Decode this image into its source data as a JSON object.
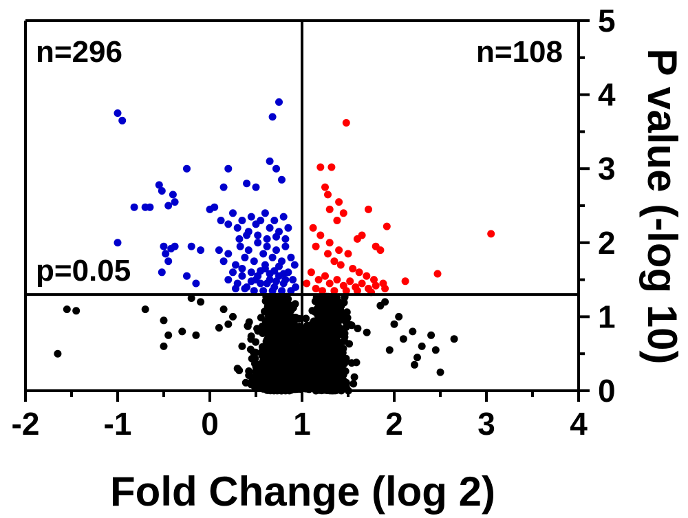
{
  "chart_data": {
    "type": "scatter",
    "title": "",
    "xlabel": "Fold Change (log 2)",
    "ylabel": "P value (-log 10)",
    "xlim": [
      -2,
      4
    ],
    "ylim": [
      0,
      5
    ],
    "x_ticks": [
      "-2",
      "-1",
      "0",
      "1",
      "2",
      "3",
      "4"
    ],
    "y_ticks": [
      "0",
      "1",
      "2",
      "3",
      "4",
      "5"
    ],
    "y_axis_side": "right",
    "grid": false,
    "threshold_x": 1,
    "threshold_y": 1.3,
    "annotations": {
      "left_count": "n=296",
      "right_count": "n=108",
      "p_threshold": "p=0.05"
    },
    "colors": {
      "down_regulated": "#0000cc",
      "up_regulated": "#ff0000",
      "not_significant": "#000000",
      "frame": "#000000"
    },
    "series": [
      {
        "group": "down",
        "color": "#0000cc",
        "points": [
          [
            -1.0,
            3.75
          ],
          [
            -0.95,
            3.65
          ],
          [
            0.75,
            3.9
          ],
          [
            0.68,
            3.7
          ],
          [
            -0.25,
            3.0
          ],
          [
            0.2,
            3.0
          ],
          [
            0.65,
            3.1
          ],
          [
            0.72,
            3.0
          ],
          [
            0.78,
            2.85
          ],
          [
            -0.55,
            2.78
          ],
          [
            -0.52,
            2.7
          ],
          [
            -0.4,
            2.65
          ],
          [
            0.15,
            2.75
          ],
          [
            0.4,
            2.8
          ],
          [
            0.5,
            2.75
          ],
          [
            -0.82,
            2.48
          ],
          [
            -0.7,
            2.48
          ],
          [
            -0.65,
            2.48
          ],
          [
            -0.45,
            2.5
          ],
          [
            -0.38,
            2.55
          ],
          [
            -1.0,
            2.0
          ],
          [
            -0.5,
            1.95
          ],
          [
            -0.45,
            1.75
          ],
          [
            -0.42,
            1.92
          ],
          [
            -0.48,
            1.85
          ],
          [
            -0.38,
            1.95
          ],
          [
            -0.2,
            1.95
          ],
          [
            -0.1,
            1.9
          ],
          [
            -0.52,
            1.6
          ],
          [
            -0.25,
            1.55
          ],
          [
            -0.15,
            1.45
          ],
          [
            0.0,
            2.45
          ],
          [
            0.05,
            2.48
          ],
          [
            0.12,
            2.3
          ],
          [
            0.2,
            2.25
          ],
          [
            0.25,
            2.4
          ],
          [
            0.3,
            2.2
          ],
          [
            0.35,
            2.3
          ],
          [
            0.4,
            2.1
          ],
          [
            0.45,
            2.35
          ],
          [
            0.5,
            2.25
          ],
          [
            0.55,
            2.3
          ],
          [
            0.6,
            2.4
          ],
          [
            0.65,
            2.2
          ],
          [
            0.7,
            2.3
          ],
          [
            0.75,
            2.15
          ],
          [
            0.8,
            2.35
          ],
          [
            0.85,
            2.2
          ],
          [
            0.1,
            1.9
          ],
          [
            0.15,
            1.75
          ],
          [
            0.2,
            1.85
          ],
          [
            0.28,
            1.7
          ],
          [
            0.33,
            1.95
          ],
          [
            0.38,
            1.8
          ],
          [
            0.42,
            1.9
          ],
          [
            0.48,
            1.75
          ],
          [
            0.52,
            2.0
          ],
          [
            0.58,
            1.85
          ],
          [
            0.62,
            1.95
          ],
          [
            0.68,
            1.8
          ],
          [
            0.72,
            1.9
          ],
          [
            0.78,
            1.75
          ],
          [
            0.82,
            1.95
          ],
          [
            0.88,
            1.8
          ],
          [
            0.92,
            1.7
          ],
          [
            0.2,
            1.5
          ],
          [
            0.25,
            1.6
          ],
          [
            0.3,
            1.45
          ],
          [
            0.35,
            1.55
          ],
          [
            0.4,
            1.4
          ],
          [
            0.45,
            1.6
          ],
          [
            0.5,
            1.5
          ],
          [
            0.55,
            1.45
          ],
          [
            0.6,
            1.65
          ],
          [
            0.65,
            1.5
          ],
          [
            0.7,
            1.4
          ],
          [
            0.75,
            1.55
          ],
          [
            0.8,
            1.45
          ],
          [
            0.85,
            1.6
          ],
          [
            0.9,
            1.5
          ],
          [
            0.93,
            1.4
          ],
          [
            0.88,
            1.35
          ],
          [
            0.78,
            1.35
          ],
          [
            0.68,
            1.35
          ],
          [
            0.58,
            1.35
          ],
          [
            0.48,
            1.35
          ],
          [
            0.38,
            1.38
          ],
          [
            0.28,
            1.38
          ],
          [
            0.6,
            1.7
          ],
          [
            0.7,
            1.62
          ],
          [
            0.75,
            1.68
          ],
          [
            0.8,
            1.58
          ],
          [
            0.65,
            1.58
          ],
          [
            0.55,
            1.62
          ],
          [
            0.72,
            1.48
          ],
          [
            0.82,
            1.5
          ],
          [
            0.62,
            1.45
          ],
          [
            0.52,
            1.55
          ],
          [
            0.45,
            1.48
          ],
          [
            0.35,
            1.65
          ],
          [
            0.32,
            2.05
          ],
          [
            0.42,
            2.15
          ],
          [
            0.52,
            2.1
          ],
          [
            0.62,
            2.05
          ],
          [
            0.72,
            2.08
          ],
          [
            0.82,
            2.05
          ]
        ]
      },
      {
        "group": "up",
        "color": "#ff0000",
        "points": [
          [
            1.48,
            3.62
          ],
          [
            1.2,
            3.02
          ],
          [
            1.32,
            3.02
          ],
          [
            1.25,
            2.75
          ],
          [
            1.28,
            2.65
          ],
          [
            1.4,
            2.55
          ],
          [
            1.72,
            2.45
          ],
          [
            1.45,
            2.4
          ],
          [
            1.3,
            2.45
          ],
          [
            3.05,
            2.12
          ],
          [
            1.92,
            2.22
          ],
          [
            1.12,
            2.2
          ],
          [
            1.38,
            2.3
          ],
          [
            1.2,
            2.1
          ],
          [
            1.3,
            2.0
          ],
          [
            1.6,
            2.05
          ],
          [
            1.65,
            2.1
          ],
          [
            1.8,
            1.95
          ],
          [
            1.85,
            1.9
          ],
          [
            1.15,
            1.95
          ],
          [
            1.28,
            1.85
          ],
          [
            1.4,
            1.9
          ],
          [
            1.5,
            1.85
          ],
          [
            1.42,
            1.7
          ],
          [
            1.35,
            1.75
          ],
          [
            1.55,
            1.65
          ],
          [
            1.62,
            1.6
          ],
          [
            1.7,
            1.55
          ],
          [
            1.78,
            1.5
          ],
          [
            1.88,
            1.45
          ],
          [
            2.12,
            1.48
          ],
          [
            2.47,
            1.58
          ],
          [
            1.1,
            1.6
          ],
          [
            1.18,
            1.5
          ],
          [
            1.25,
            1.55
          ],
          [
            1.3,
            1.45
          ],
          [
            1.38,
            1.5
          ],
          [
            1.45,
            1.42
          ],
          [
            1.52,
            1.48
          ],
          [
            1.58,
            1.4
          ],
          [
            1.65,
            1.45
          ],
          [
            1.72,
            1.38
          ],
          [
            1.8,
            1.42
          ],
          [
            1.9,
            1.38
          ],
          [
            1.15,
            1.38
          ],
          [
            1.22,
            1.35
          ],
          [
            1.35,
            1.35
          ],
          [
            1.48,
            1.35
          ],
          [
            1.6,
            1.35
          ],
          [
            1.75,
            1.33
          ],
          [
            1.05,
            1.45
          ]
        ]
      },
      {
        "group": "ns",
        "color": "#000000",
        "points": [
          [
            -1.65,
            0.5
          ],
          [
            -1.55,
            1.1
          ],
          [
            -1.45,
            1.08
          ],
          [
            -0.7,
            1.1
          ],
          [
            -0.5,
            0.95
          ],
          [
            -0.45,
            0.75
          ],
          [
            -0.3,
            0.8
          ],
          [
            -0.5,
            0.6
          ],
          [
            -0.15,
            0.75
          ],
          [
            -0.2,
            1.25
          ],
          [
            -0.1,
            1.2
          ],
          [
            0.1,
            0.85
          ],
          [
            0.2,
            0.9
          ],
          [
            0.15,
            1.1
          ],
          [
            2.65,
            0.7
          ],
          [
            2.45,
            0.55
          ],
          [
            2.3,
            0.6
          ],
          [
            2.25,
            0.45
          ],
          [
            2.2,
            0.8
          ],
          [
            2.4,
            0.75
          ],
          [
            2.0,
            0.9
          ],
          [
            2.05,
            1.0
          ],
          [
            2.1,
            0.7
          ],
          [
            1.95,
            0.55
          ],
          [
            1.85,
            1.15
          ],
          [
            1.9,
            1.2
          ],
          [
            2.22,
            0.35
          ],
          [
            2.5,
            0.25
          ],
          [
            0.3,
            0.3
          ],
          [
            0.35,
            0.6
          ],
          [
            0.25,
            1.0
          ]
        ]
      }
    ],
    "ns_cloud": [
      {
        "x_min": 0.35,
        "x_max": 1.25,
        "y_min": 0.02,
        "y_max": 0.6,
        "count": 900
      },
      {
        "x_min": 0.5,
        "x_max": 1.0,
        "y_min": 0.0,
        "y_max": 1.3,
        "count": 700
      },
      {
        "x_min": 1.02,
        "x_max": 1.55,
        "y_min": 0.0,
        "y_max": 1.3,
        "count": 700
      },
      {
        "x_min": 0.1,
        "x_max": 1.9,
        "y_min": 0.05,
        "y_max": 1.0,
        "count": 500
      }
    ]
  }
}
